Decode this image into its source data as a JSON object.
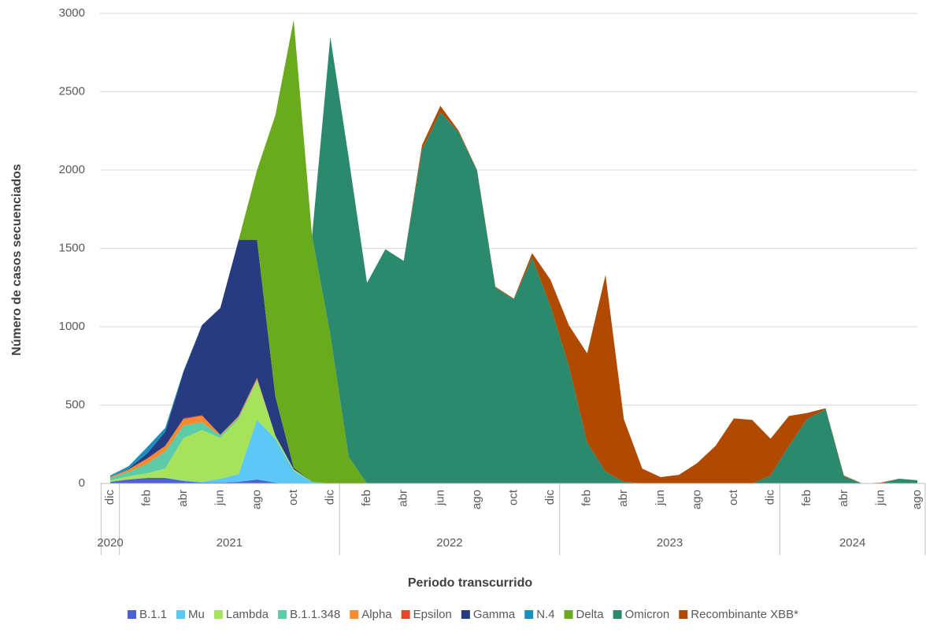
{
  "chart_data": {
    "type": "stacked-area",
    "y_label": "Número de casos secuenciados",
    "x_label": "Periodo transcurrido",
    "category_groups": [
      {
        "label": "2020",
        "categories": [
          "dic"
        ]
      },
      {
        "label": "2021",
        "categories": [
          null,
          "feb",
          null,
          "abr",
          null,
          "jun",
          null,
          "ago",
          null,
          "oct",
          null,
          "dic"
        ]
      },
      {
        "label": "2022",
        "categories": [
          null,
          "feb",
          null,
          "abr",
          null,
          "jun",
          null,
          "ago",
          null,
          "oct",
          null,
          "dic"
        ]
      },
      {
        "label": "2023",
        "categories": [
          null,
          "feb",
          null,
          "abr",
          null,
          "jun",
          null,
          "ago",
          null,
          "oct",
          null,
          "dic"
        ]
      },
      {
        "label": "2024",
        "categories": [
          null,
          "feb",
          null,
          "abr",
          null,
          "jun",
          null,
          "ago"
        ]
      }
    ],
    "ylim": [
      0,
      3000
    ],
    "yticks": [
      0,
      500,
      1000,
      1500,
      2000,
      2500,
      3000
    ],
    "grid": true,
    "legend": "bottom",
    "series": [
      {
        "name": "B.1.1",
        "color": "#4f5fd6",
        "values": [
          10,
          25,
          35,
          35,
          15,
          5,
          5,
          10,
          25,
          5,
          0,
          0,
          0,
          0,
          0,
          0,
          0,
          0,
          0,
          0,
          0,
          0,
          0,
          0,
          0,
          0,
          0,
          0,
          0,
          0,
          0,
          0,
          0,
          0,
          0,
          0,
          0,
          0,
          0,
          0,
          0,
          0,
          0,
          0,
          0
        ]
      },
      {
        "name": "Mu",
        "color": "#5bc8f5",
        "values": [
          0,
          0,
          0,
          0,
          5,
          5,
          25,
          50,
          380,
          280,
          80,
          10,
          0,
          0,
          0,
          0,
          0,
          0,
          0,
          0,
          0,
          0,
          0,
          0,
          0,
          0,
          0,
          0,
          0,
          0,
          0,
          0,
          0,
          0,
          0,
          0,
          0,
          0,
          0,
          0,
          0,
          0,
          0,
          0,
          0
        ]
      },
      {
        "name": "Lambda",
        "color": "#a6e35a",
        "values": [
          10,
          20,
          30,
          60,
          270,
          330,
          260,
          350,
          250,
          20,
          10,
          0,
          0,
          0,
          0,
          0,
          0,
          0,
          0,
          0,
          0,
          0,
          0,
          0,
          0,
          0,
          0,
          0,
          0,
          0,
          0,
          0,
          0,
          0,
          0,
          0,
          0,
          0,
          0,
          0,
          0,
          0,
          0,
          0,
          0
        ]
      },
      {
        "name": "B.1.1.348",
        "color": "#5ecba8",
        "values": [
          15,
          30,
          60,
          110,
          80,
          50,
          15,
          10,
          5,
          0,
          0,
          0,
          0,
          0,
          0,
          0,
          0,
          0,
          0,
          0,
          0,
          0,
          0,
          0,
          0,
          0,
          0,
          0,
          0,
          0,
          0,
          0,
          0,
          0,
          0,
          0,
          0,
          0,
          0,
          0,
          0,
          0,
          0,
          0,
          0
        ]
      },
      {
        "name": "Alpha",
        "color": "#f58b2e",
        "values": [
          5,
          15,
          30,
          35,
          40,
          40,
          5,
          10,
          10,
          0,
          0,
          0,
          0,
          0,
          0,
          0,
          0,
          0,
          0,
          0,
          0,
          0,
          0,
          0,
          0,
          0,
          0,
          0,
          0,
          0,
          0,
          0,
          0,
          0,
          0,
          0,
          0,
          0,
          0,
          0,
          0,
          0,
          0,
          0,
          0
        ]
      },
      {
        "name": "Epsilon",
        "color": "#e8442a",
        "values": [
          0,
          0,
          5,
          0,
          5,
          5,
          0,
          0,
          5,
          0,
          0,
          0,
          0,
          0,
          0,
          0,
          0,
          0,
          0,
          0,
          0,
          0,
          0,
          0,
          0,
          0,
          0,
          0,
          0,
          0,
          0,
          0,
          0,
          0,
          0,
          0,
          0,
          0,
          0,
          0,
          0,
          0,
          0,
          0,
          0
        ]
      },
      {
        "name": "Gamma",
        "color": "#263b80",
        "values": [
          0,
          5,
          30,
          90,
          300,
          575,
          810,
          1125,
          880,
          250,
          10,
          0,
          0,
          0,
          0,
          0,
          0,
          0,
          0,
          0,
          0,
          0,
          0,
          0,
          0,
          0,
          0,
          0,
          0,
          0,
          0,
          0,
          0,
          0,
          0,
          0,
          0,
          0,
          0,
          0,
          0,
          0,
          0,
          0,
          0
        ]
      },
      {
        "name": "N.4",
        "color": "#1a8fbf",
        "values": [
          10,
          15,
          40,
          25,
          5,
          0,
          0,
          0,
          0,
          0,
          0,
          0,
          0,
          0,
          0,
          0,
          0,
          0,
          0,
          0,
          0,
          0,
          0,
          0,
          0,
          0,
          0,
          0,
          0,
          0,
          0,
          0,
          0,
          0,
          0,
          0,
          0,
          0,
          0,
          0,
          0,
          0,
          0,
          0,
          0
        ]
      },
      {
        "name": "Delta",
        "color": "#6aab1e",
        "values": [
          0,
          0,
          0,
          0,
          0,
          0,
          0,
          0,
          445,
          1795,
          2860,
          1570,
          950,
          170,
          0,
          0,
          0,
          0,
          0,
          0,
          0,
          0,
          0,
          0,
          0,
          0,
          0,
          0,
          0,
          0,
          0,
          0,
          0,
          0,
          0,
          0,
          0,
          0,
          0,
          0,
          0,
          0,
          0,
          0,
          0
        ]
      },
      {
        "name": "Omicron",
        "color": "#2b8a6e",
        "values": [
          0,
          0,
          0,
          0,
          0,
          0,
          0,
          0,
          0,
          0,
          0,
          0,
          1900,
          1910,
          1280,
          1495,
          1420,
          2130,
          2370,
          2240,
          1995,
          1250,
          1175,
          1440,
          1130,
          750,
          260,
          75,
          10,
          0,
          0,
          0,
          0,
          0,
          0,
          0,
          50,
          240,
          410,
          475,
          45,
          0,
          0,
          30,
          20
        ]
      },
      {
        "name": "Recombinante XBB*",
        "color": "#b04a00",
        "values": [
          0,
          0,
          0,
          0,
          0,
          0,
          0,
          0,
          0,
          0,
          0,
          0,
          0,
          0,
          0,
          0,
          0,
          30,
          40,
          10,
          5,
          5,
          5,
          30,
          170,
          260,
          570,
          1255,
          400,
          95,
          40,
          55,
          130,
          240,
          415,
          405,
          235,
          190,
          40,
          5,
          5,
          0,
          5,
          0,
          0
        ]
      }
    ]
  }
}
